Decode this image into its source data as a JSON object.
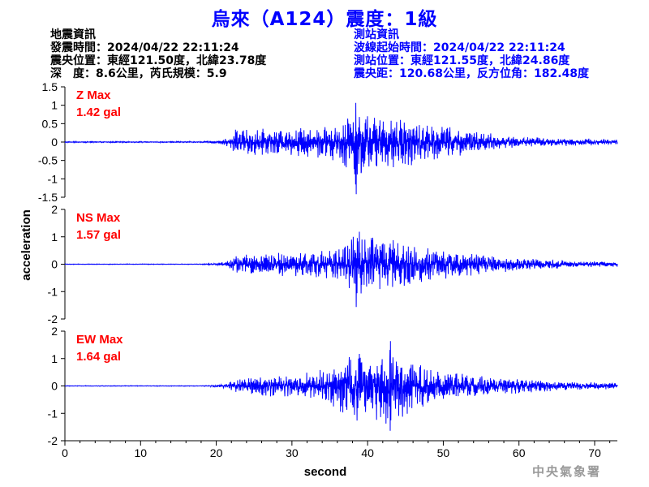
{
  "title": "烏來（A124）震度：1級",
  "quake_info": {
    "heading": "地震資訊",
    "origin_time": "發震時間：2024/04/22 22:11:24",
    "epicenter": "震央位置：東經121.50度，北緯23.78度",
    "depth_magnitude": "深　度：8.6公里，芮氏規模：5.9"
  },
  "station_info": {
    "heading": "測站資訊",
    "wave_start": "波線起始時間：2024/04/22 22:11:24",
    "station_location": "測站位置：東經121.55度，北緯24.86度",
    "distance_azimuth": "震央距：120.68公里，反方位角：182.48度"
  },
  "watermark": "中央氣象署",
  "colors": {
    "title": "#0000ff",
    "trace": "#0000ff",
    "max_label": "#ff0000",
    "station_info": "#0000ff",
    "axis": "#000000"
  },
  "chart_data": {
    "type": "line",
    "xlabel": "second",
    "ylabel": "acceleration",
    "xlim": [
      0,
      73
    ],
    "xticks": [
      0,
      10,
      20,
      30,
      40,
      50,
      60,
      70
    ],
    "xtick_labels": [
      "0",
      "10",
      "20",
      "30",
      "40",
      "50",
      "60",
      "70"
    ],
    "panels": [
      {
        "channel": "Z",
        "max_title": "Z Max",
        "max_value": "1.42 gal",
        "ylim": [
          -1.5,
          1.5
        ],
        "yticks": [
          -1.5,
          -1,
          -0.5,
          0,
          0.5,
          1,
          1.5
        ],
        "ytick_labels": [
          "-1.5",
          "-1",
          "-0.5",
          "0",
          "0.5",
          "1",
          "1.5"
        ],
        "envelope": {
          "t": [
            0,
            18,
            20.5,
            21.5,
            22.5,
            25,
            28,
            31,
            34,
            36,
            37.5,
            38.5,
            39.5,
            41,
            43,
            45,
            47,
            50,
            53,
            56,
            60,
            64,
            68,
            73
          ],
          "amp": [
            0.015,
            0.015,
            0.05,
            0.15,
            0.35,
            0.38,
            0.4,
            0.42,
            0.45,
            0.55,
            0.8,
            1.42,
            1.05,
            0.75,
            0.75,
            0.7,
            0.6,
            0.45,
            0.35,
            0.25,
            0.15,
            0.12,
            0.1,
            0.09
          ]
        }
      },
      {
        "channel": "NS",
        "max_title": "NS Max",
        "max_value": "1.57 gal",
        "ylim": [
          -2,
          2
        ],
        "yticks": [
          -2,
          -1,
          0,
          1,
          2
        ],
        "ytick_labels": [
          "-2",
          "-1",
          "0",
          "1",
          "2"
        ],
        "envelope": {
          "t": [
            0,
            18,
            20.5,
            21.5,
            22.5,
            25,
            28,
            31,
            34,
            36,
            37.5,
            38.5,
            39.5,
            41,
            43,
            45,
            47,
            50,
            53,
            56,
            60,
            64,
            68,
            73
          ],
          "amp": [
            0.01,
            0.01,
            0.05,
            0.15,
            0.35,
            0.4,
            0.45,
            0.45,
            0.5,
            0.6,
            0.9,
            1.57,
            1.1,
            1.05,
            1.0,
            0.85,
            0.7,
            0.55,
            0.45,
            0.35,
            0.25,
            0.18,
            0.12,
            0.1
          ]
        }
      },
      {
        "channel": "EW",
        "max_title": "EW Max",
        "max_value": "1.64 gal",
        "ylim": [
          -2,
          2
        ],
        "yticks": [
          -2,
          -1,
          0,
          1,
          2
        ],
        "ytick_labels": [
          "-2",
          "-1",
          "0",
          "1",
          "2"
        ],
        "envelope": {
          "t": [
            0,
            18,
            20.5,
            21.5,
            22.5,
            25,
            28,
            31,
            34,
            36,
            37.5,
            38.5,
            39.5,
            41,
            43,
            45,
            47,
            50,
            53,
            56,
            60,
            64,
            68,
            73
          ],
          "amp": [
            0.01,
            0.01,
            0.05,
            0.12,
            0.25,
            0.35,
            0.4,
            0.45,
            0.6,
            0.9,
            1.2,
            1.45,
            1.3,
            1.3,
            1.64,
            1.1,
            0.8,
            0.55,
            0.45,
            0.35,
            0.3,
            0.2,
            0.15,
            0.12
          ]
        }
      }
    ]
  }
}
